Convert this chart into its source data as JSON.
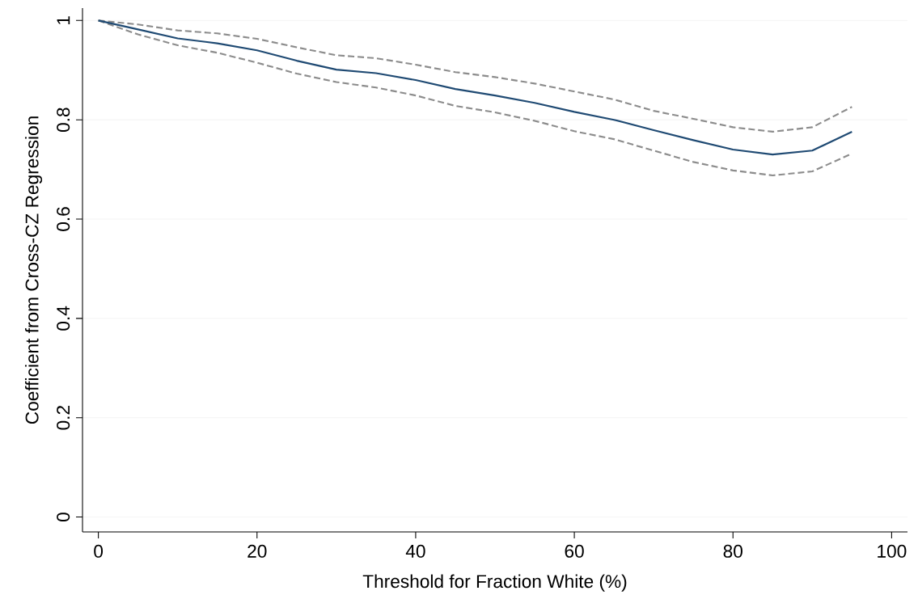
{
  "chart_data": {
    "type": "line",
    "xlabel": "Threshold for Fraction White (%)",
    "ylabel": "Coefficient from Cross-CZ Regression",
    "x": [
      0,
      5,
      10,
      15,
      20,
      25,
      30,
      35,
      40,
      45,
      50,
      55,
      60,
      65,
      70,
      75,
      80,
      85,
      90,
      95
    ],
    "series": [
      {
        "color": "#8c8c8c",
        "line_style": "dashed",
        "values": [
          1.0,
          0.992,
          0.98,
          0.974,
          0.963,
          0.946,
          0.93,
          0.924,
          0.911,
          0.896,
          0.886,
          0.873,
          0.857,
          0.841,
          0.818,
          0.802,
          0.785,
          0.776,
          0.785,
          0.826
        ]
      },
      {
        "color": "#8c8c8c",
        "line_style": "dashed",
        "values": [
          1.0,
          0.972,
          0.95,
          0.935,
          0.915,
          0.893,
          0.876,
          0.865,
          0.849,
          0.828,
          0.815,
          0.798,
          0.777,
          0.761,
          0.738,
          0.715,
          0.698,
          0.688,
          0.696,
          0.732
        ]
      },
      {
        "color": "#1f4a73",
        "line_style": "solid",
        "values": [
          1.0,
          0.982,
          0.964,
          0.954,
          0.94,
          0.919,
          0.901,
          0.894,
          0.88,
          0.862,
          0.849,
          0.834,
          0.816,
          0.8,
          0.779,
          0.759,
          0.74,
          0.73,
          0.738,
          0.776
        ]
      }
    ],
    "xlim": [
      -2,
      102
    ],
    "ylim": [
      -0.03,
      1.025
    ],
    "xticks": [
      0,
      20,
      40,
      60,
      80,
      100
    ],
    "yticks": [
      0,
      0.2,
      0.4,
      0.6,
      0.8,
      1
    ],
    "grid": "y",
    "marker": "none"
  }
}
